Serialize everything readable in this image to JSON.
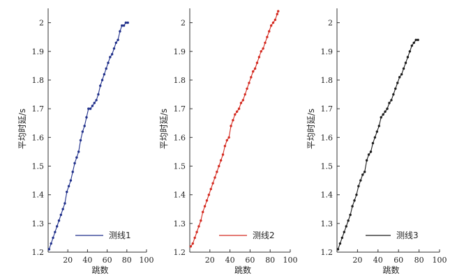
{
  "chart_data": [
    {
      "type": "line",
      "xlabel": "跳数",
      "ylabel": "平均时延/s",
      "xlim": [
        0,
        100
      ],
      "ylim": [
        1.2,
        2.05
      ],
      "xticks": [
        20,
        40,
        60,
        80,
        100
      ],
      "yticks": [
        1.2,
        1.3,
        1.4,
        1.5,
        1.6,
        1.7,
        1.8,
        1.9,
        2.0
      ],
      "xtick_labels": [
        "20",
        "40",
        "60",
        "80",
        "100"
      ],
      "ytick_labels": [
        "1.2",
        "1.3",
        "1.4",
        "1.5",
        "1.6",
        "1.7",
        "1.8",
        "1.9",
        "2"
      ],
      "legend_position": "bottom-right",
      "color": "#1f2f8a",
      "series": [
        {
          "name": "测线1",
          "x": [
            1,
            3,
            5,
            7,
            9,
            11,
            13,
            15,
            17,
            19,
            21,
            23,
            25,
            27,
            29,
            31,
            33,
            35,
            37,
            39,
            41,
            43,
            45,
            47,
            49,
            51,
            53,
            55,
            57,
            59,
            61,
            63,
            65,
            67,
            69,
            71,
            73,
            75,
            77,
            79,
            81
          ],
          "y": [
            1.21,
            1.23,
            1.25,
            1.27,
            1.29,
            1.31,
            1.33,
            1.35,
            1.37,
            1.41,
            1.43,
            1.45,
            1.48,
            1.51,
            1.53,
            1.55,
            1.59,
            1.62,
            1.64,
            1.67,
            1.7,
            1.7,
            1.71,
            1.72,
            1.73,
            1.75,
            1.78,
            1.8,
            1.82,
            1.84,
            1.86,
            1.88,
            1.89,
            1.91,
            1.93,
            1.94,
            1.97,
            1.99,
            1.99,
            2.0,
            2.0
          ]
        }
      ]
    },
    {
      "type": "line",
      "xlabel": "跳数",
      "ylabel": "平均时延/s",
      "xlim": [
        0,
        100
      ],
      "ylim": [
        1.2,
        2.05
      ],
      "xticks": [
        20,
        40,
        60,
        80,
        100
      ],
      "yticks": [
        1.2,
        1.3,
        1.4,
        1.5,
        1.6,
        1.7,
        1.8,
        1.9,
        2.0
      ],
      "xtick_labels": [
        "20",
        "40",
        "60",
        "80",
        "100"
      ],
      "ytick_labels": [
        "1.2",
        "1.3",
        "1.4",
        "1.5",
        "1.6",
        "1.7",
        "1.8",
        "1.9",
        "2"
      ],
      "legend_position": "bottom-right",
      "color": "#d42a20",
      "series": [
        {
          "name": "测线2",
          "x": [
            1,
            3,
            5,
            7,
            9,
            11,
            13,
            15,
            17,
            19,
            21,
            23,
            25,
            27,
            29,
            31,
            33,
            35,
            37,
            39,
            41,
            43,
            45,
            47,
            49,
            51,
            53,
            55,
            57,
            59,
            61,
            63,
            65,
            67,
            69,
            71,
            73,
            75,
            77,
            79,
            81,
            83,
            85,
            87,
            88
          ],
          "y": [
            1.22,
            1.23,
            1.25,
            1.27,
            1.29,
            1.31,
            1.34,
            1.36,
            1.38,
            1.4,
            1.42,
            1.44,
            1.46,
            1.48,
            1.5,
            1.52,
            1.54,
            1.57,
            1.59,
            1.6,
            1.64,
            1.66,
            1.68,
            1.69,
            1.7,
            1.72,
            1.73,
            1.75,
            1.77,
            1.79,
            1.81,
            1.83,
            1.84,
            1.86,
            1.88,
            1.9,
            1.91,
            1.93,
            1.95,
            1.97,
            1.99,
            2.0,
            2.01,
            2.03,
            2.04
          ]
        }
      ]
    },
    {
      "type": "line",
      "xlabel": "跳数",
      "ylabel": "平均时延/s",
      "xlim": [
        0,
        100
      ],
      "ylim": [
        1.2,
        2.05
      ],
      "xticks": [
        20,
        40,
        60,
        80,
        100
      ],
      "yticks": [
        1.2,
        1.3,
        1.4,
        1.5,
        1.6,
        1.7,
        1.8,
        1.9,
        2.0
      ],
      "xtick_labels": [
        "20",
        "40",
        "60",
        "80",
        "100"
      ],
      "ytick_labels": [
        "1.2",
        "1.3",
        "1.4",
        "1.5",
        "1.6",
        "1.7",
        "1.8",
        "1.9",
        "2"
      ],
      "legend_position": "bottom-right",
      "color": "#1a1a1a",
      "series": [
        {
          "name": "测线3",
          "x": [
            1,
            3,
            5,
            7,
            9,
            11,
            13,
            15,
            17,
            19,
            21,
            23,
            25,
            27,
            29,
            31,
            33,
            35,
            37,
            39,
            41,
            43,
            45,
            47,
            49,
            51,
            53,
            55,
            57,
            59,
            61,
            63,
            65,
            67,
            69,
            71,
            73,
            75,
            77,
            79
          ],
          "y": [
            1.21,
            1.23,
            1.25,
            1.27,
            1.29,
            1.31,
            1.33,
            1.36,
            1.38,
            1.4,
            1.43,
            1.45,
            1.47,
            1.48,
            1.52,
            1.54,
            1.55,
            1.58,
            1.6,
            1.62,
            1.64,
            1.67,
            1.68,
            1.69,
            1.7,
            1.72,
            1.73,
            1.75,
            1.77,
            1.79,
            1.81,
            1.82,
            1.84,
            1.86,
            1.88,
            1.9,
            1.92,
            1.93,
            1.94,
            1.94
          ]
        }
      ]
    }
  ]
}
